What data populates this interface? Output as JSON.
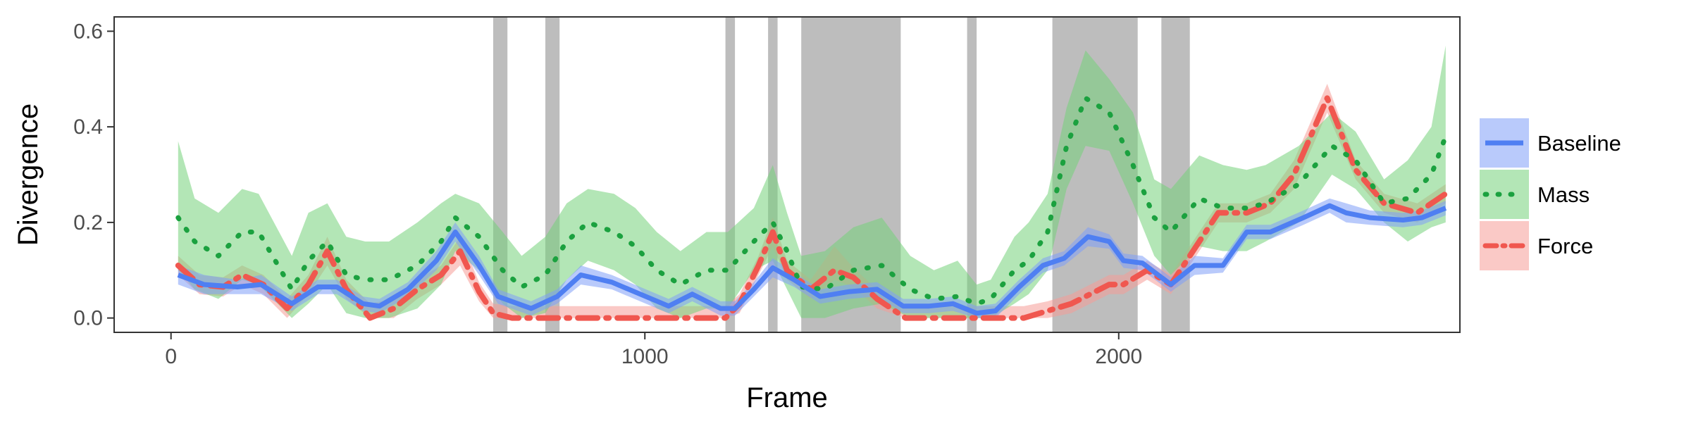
{
  "chart_data": {
    "type": "line",
    "title": "",
    "xlabel": "Frame",
    "ylabel": "Divergence",
    "xlim": [
      -120,
      2720
    ],
    "ylim": [
      -0.03,
      0.63
    ],
    "xticks": [
      0,
      1000,
      2000
    ],
    "xtick_labels": [
      "0",
      "1000",
      "2000"
    ],
    "yticks": [
      0.0,
      0.2,
      0.4,
      0.6
    ],
    "ytick_labels": [
      "0.0",
      "0.2",
      "0.4",
      "0.6"
    ],
    "grid": false,
    "legend_position": "right",
    "highlight_color": "#bdbdbd",
    "highlight_intervals": [
      [
        680,
        710
      ],
      [
        790,
        820
      ],
      [
        1170,
        1190
      ],
      [
        1260,
        1280
      ],
      [
        1330,
        1540
      ],
      [
        1680,
        1700
      ],
      [
        1860,
        2040
      ],
      [
        2090,
        2150
      ]
    ],
    "series": [
      {
        "name": "Baseline",
        "color": "#4f7ff2",
        "band_color": "#7f9ff7",
        "line_style": "solid",
        "x": [
          15,
          70,
          140,
          190,
          255,
          310,
          350,
          405,
          440,
          500,
          560,
          600,
          650,
          690,
          760,
          815,
          865,
          930,
          990,
          1050,
          1100,
          1160,
          1190,
          1230,
          1270,
          1315,
          1370,
          1430,
          1490,
          1545,
          1600,
          1650,
          1700,
          1740,
          1790,
          1840,
          1885,
          1935,
          1980,
          2010,
          2050,
          2110,
          2160,
          2220,
          2270,
          2320,
          2390,
          2445,
          2480,
          2530,
          2600,
          2640,
          2690
        ],
        "y": [
          0.09,
          0.07,
          0.065,
          0.07,
          0.03,
          0.065,
          0.065,
          0.03,
          0.025,
          0.06,
          0.12,
          0.18,
          0.11,
          0.045,
          0.02,
          0.045,
          0.09,
          0.075,
          0.05,
          0.025,
          0.05,
          0.02,
          0.02,
          0.06,
          0.105,
          0.08,
          0.045,
          0.055,
          0.06,
          0.025,
          0.025,
          0.03,
          0.01,
          0.015,
          0.065,
          0.11,
          0.125,
          0.17,
          0.16,
          0.12,
          0.115,
          0.07,
          0.11,
          0.11,
          0.18,
          0.18,
          0.21,
          0.235,
          0.22,
          0.21,
          0.205,
          0.21,
          0.23
        ],
        "lower": [
          0.07,
          0.05,
          0.05,
          0.05,
          0.015,
          0.05,
          0.05,
          0.015,
          0.01,
          0.045,
          0.1,
          0.16,
          0.09,
          0.03,
          0.005,
          0.03,
          0.07,
          0.06,
          0.035,
          0.01,
          0.035,
          0.005,
          0.005,
          0.045,
          0.085,
          0.065,
          0.03,
          0.04,
          0.045,
          0.01,
          0.01,
          0.015,
          0.0,
          0.0,
          0.05,
          0.095,
          0.11,
          0.15,
          0.145,
          0.105,
          0.1,
          0.055,
          0.09,
          0.095,
          0.165,
          0.165,
          0.195,
          0.22,
          0.2,
          0.195,
          0.19,
          0.195,
          0.215
        ],
        "upper": [
          0.11,
          0.09,
          0.08,
          0.09,
          0.045,
          0.08,
          0.08,
          0.045,
          0.04,
          0.075,
          0.14,
          0.2,
          0.13,
          0.06,
          0.035,
          0.06,
          0.11,
          0.09,
          0.065,
          0.04,
          0.065,
          0.035,
          0.035,
          0.075,
          0.125,
          0.095,
          0.06,
          0.07,
          0.075,
          0.04,
          0.04,
          0.045,
          0.025,
          0.03,
          0.08,
          0.125,
          0.14,
          0.19,
          0.175,
          0.135,
          0.13,
          0.085,
          0.13,
          0.125,
          0.195,
          0.195,
          0.225,
          0.25,
          0.24,
          0.225,
          0.22,
          0.225,
          0.245
        ]
      },
      {
        "name": "Mass",
        "color": "#1ba13f",
        "band_color": "#74d17a",
        "line_style": "dotted",
        "x": [
          15,
          50,
          100,
          150,
          185,
          255,
          290,
          330,
          370,
          410,
          460,
          520,
          570,
          600,
          650,
          700,
          740,
          790,
          835,
          880,
          935,
          980,
          1025,
          1075,
          1130,
          1175,
          1230,
          1270,
          1300,
          1330,
          1380,
          1440,
          1500,
          1560,
          1610,
          1660,
          1700,
          1730,
          1780,
          1810,
          1850,
          1890,
          1930,
          1980,
          2030,
          2075,
          2110,
          2170,
          2220,
          2270,
          2310,
          2380,
          2450,
          2500,
          2560,
          2610,
          2660,
          2690
        ],
        "y": [
          0.21,
          0.16,
          0.13,
          0.18,
          0.18,
          0.06,
          0.12,
          0.16,
          0.09,
          0.08,
          0.08,
          0.11,
          0.16,
          0.21,
          0.17,
          0.1,
          0.065,
          0.09,
          0.16,
          0.2,
          0.18,
          0.15,
          0.1,
          0.07,
          0.1,
          0.1,
          0.16,
          0.2,
          0.14,
          0.065,
          0.06,
          0.1,
          0.11,
          0.06,
          0.04,
          0.045,
          0.03,
          0.04,
          0.1,
          0.12,
          0.18,
          0.36,
          0.46,
          0.43,
          0.32,
          0.21,
          0.18,
          0.25,
          0.23,
          0.23,
          0.24,
          0.28,
          0.36,
          0.33,
          0.24,
          0.25,
          0.3,
          0.38
        ],
        "lower": [
          0.1,
          0.06,
          0.04,
          0.08,
          0.07,
          0.0,
          0.03,
          0.07,
          0.01,
          0.0,
          0.0,
          0.02,
          0.07,
          0.14,
          0.1,
          0.03,
          0.0,
          0.01,
          0.08,
          0.12,
          0.1,
          0.07,
          0.02,
          0.0,
          0.02,
          0.02,
          0.1,
          0.12,
          0.06,
          0.0,
          0.0,
          0.02,
          0.03,
          0.0,
          0.0,
          0.0,
          0.0,
          0.0,
          0.03,
          0.05,
          0.1,
          0.27,
          0.36,
          0.35,
          0.24,
          0.13,
          0.09,
          0.15,
          0.14,
          0.14,
          0.16,
          0.2,
          0.3,
          0.27,
          0.2,
          0.16,
          0.19,
          0.2
        ],
        "upper": [
          0.37,
          0.25,
          0.22,
          0.27,
          0.26,
          0.13,
          0.22,
          0.24,
          0.17,
          0.16,
          0.16,
          0.2,
          0.24,
          0.26,
          0.24,
          0.18,
          0.13,
          0.17,
          0.24,
          0.27,
          0.26,
          0.23,
          0.18,
          0.14,
          0.18,
          0.18,
          0.23,
          0.32,
          0.22,
          0.13,
          0.14,
          0.19,
          0.21,
          0.13,
          0.1,
          0.12,
          0.07,
          0.08,
          0.17,
          0.2,
          0.26,
          0.44,
          0.56,
          0.5,
          0.43,
          0.29,
          0.27,
          0.34,
          0.32,
          0.31,
          0.32,
          0.36,
          0.43,
          0.39,
          0.29,
          0.33,
          0.4,
          0.57
        ]
      },
      {
        "name": "Force",
        "color": "#f0574f",
        "band_color": "#f59d97",
        "line_style": "dashdot",
        "x": [
          15,
          60,
          110,
          150,
          195,
          245,
          290,
          330,
          370,
          420,
          470,
          520,
          570,
          610,
          650,
          680,
          720,
          780,
          830,
          880,
          940,
          1000,
          1050,
          1100,
          1170,
          1200,
          1240,
          1270,
          1300,
          1350,
          1400,
          1440,
          1490,
          1550,
          1610,
          1660,
          1700,
          1750,
          1800,
          1850,
          1900,
          1940,
          1980,
          2010,
          2060,
          2110,
          2150,
          2210,
          2270,
          2320,
          2370,
          2440,
          2500,
          2560,
          2630,
          2690
        ],
        "y": [
          0.11,
          0.07,
          0.065,
          0.09,
          0.07,
          0.02,
          0.07,
          0.14,
          0.06,
          0.0,
          0.02,
          0.06,
          0.09,
          0.14,
          0.055,
          0.01,
          0.0,
          0.0,
          0.0,
          0.0,
          0.0,
          0.0,
          0.0,
          0.0,
          0.0,
          0.03,
          0.11,
          0.18,
          0.1,
          0.06,
          0.1,
          0.085,
          0.04,
          0.0,
          0.0,
          0.0,
          0.0,
          0.0,
          0.0,
          0.015,
          0.03,
          0.05,
          0.07,
          0.07,
          0.1,
          0.07,
          0.13,
          0.22,
          0.22,
          0.24,
          0.3,
          0.46,
          0.31,
          0.24,
          0.22,
          0.26
        ],
        "lower": [
          0.09,
          0.05,
          0.045,
          0.07,
          0.05,
          0.0,
          0.05,
          0.11,
          0.04,
          0.0,
          0.0,
          0.04,
          0.07,
          0.11,
          0.035,
          0.0,
          0.0,
          0.0,
          0.0,
          0.0,
          0.0,
          0.0,
          0.0,
          0.0,
          0.0,
          0.01,
          0.09,
          0.15,
          0.08,
          0.04,
          0.08,
          0.065,
          0.02,
          0.0,
          0.0,
          0.0,
          0.0,
          0.0,
          0.0,
          0.0,
          0.01,
          0.03,
          0.05,
          0.05,
          0.08,
          0.05,
          0.11,
          0.2,
          0.2,
          0.22,
          0.27,
          0.43,
          0.29,
          0.22,
          0.2,
          0.24
        ],
        "upper": [
          0.13,
          0.09,
          0.085,
          0.11,
          0.09,
          0.04,
          0.09,
          0.17,
          0.08,
          0.03,
          0.04,
          0.08,
          0.11,
          0.17,
          0.075,
          0.03,
          0.025,
          0.025,
          0.025,
          0.025,
          0.025,
          0.025,
          0.025,
          0.025,
          0.025,
          0.05,
          0.13,
          0.21,
          0.12,
          0.08,
          0.15,
          0.105,
          0.06,
          0.025,
          0.025,
          0.025,
          0.025,
          0.025,
          0.025,
          0.035,
          0.05,
          0.07,
          0.09,
          0.09,
          0.12,
          0.09,
          0.15,
          0.24,
          0.24,
          0.26,
          0.33,
          0.49,
          0.33,
          0.26,
          0.24,
          0.28
        ]
      }
    ]
  }
}
